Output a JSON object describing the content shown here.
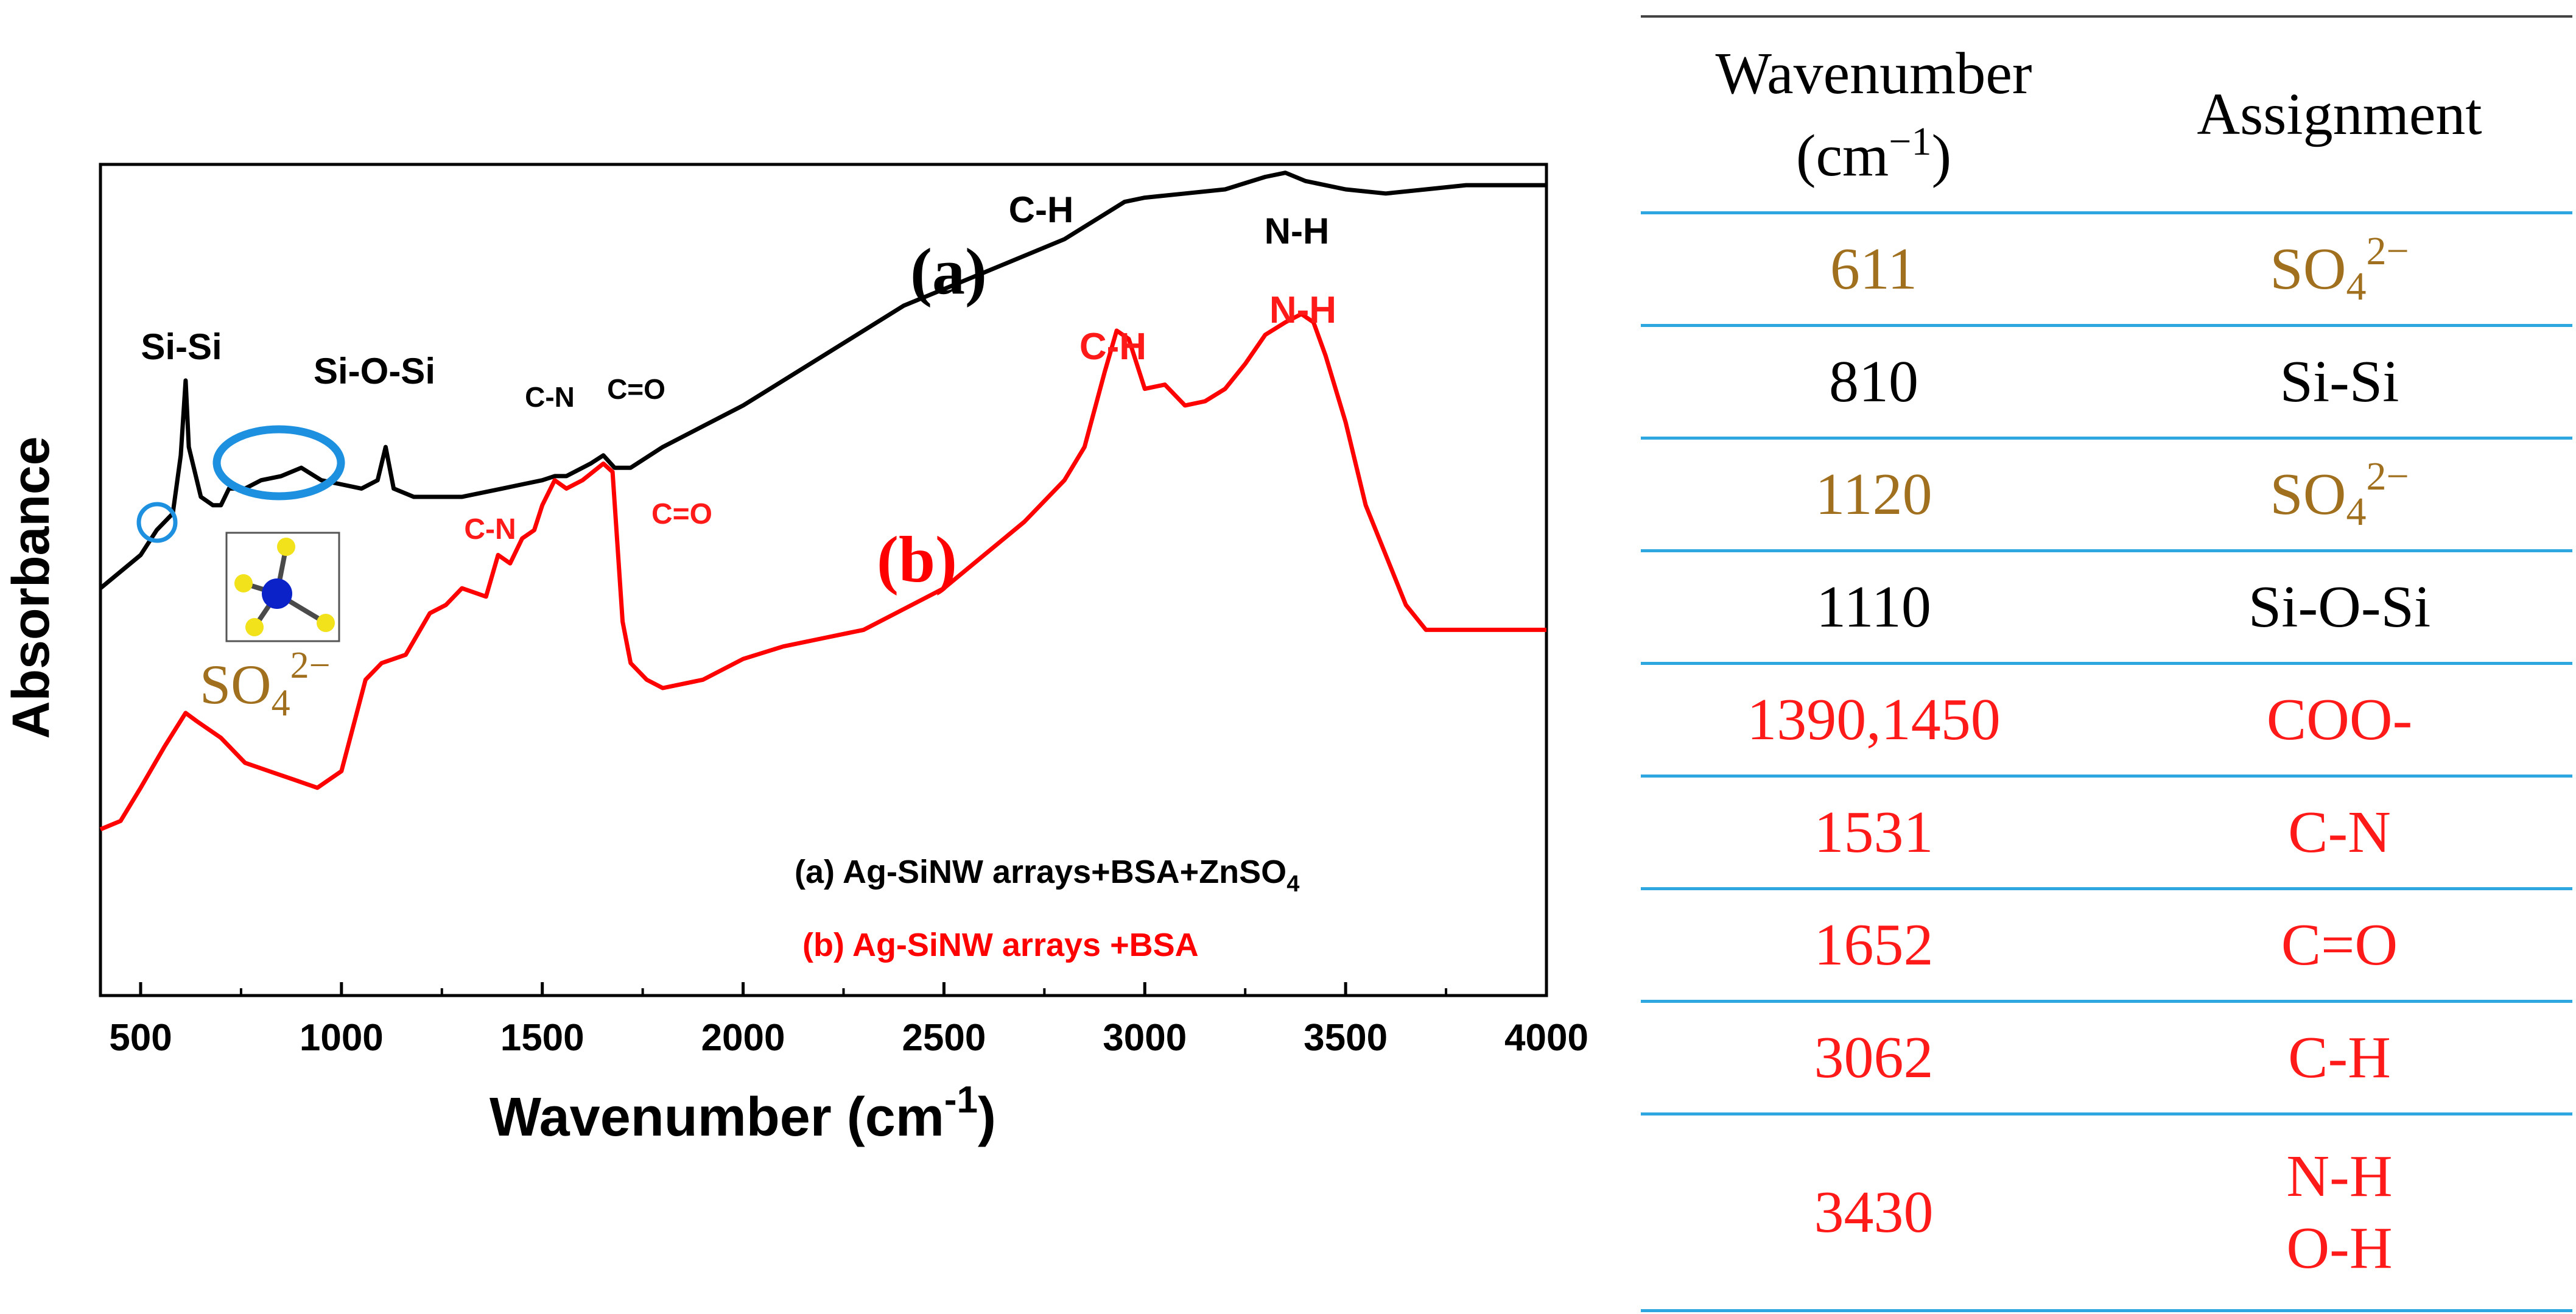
{
  "chart_data": {
    "type": "line",
    "xlabel": "Wavenumber (cm-1)",
    "xlabel_base": "Wavenumber (cm",
    "xlabel_exp": "-1",
    "xlabel_close": ")",
    "ylabel": "Absorbance",
    "xlim": [
      400,
      4000
    ],
    "ylim": [
      0,
      100
    ],
    "xticks": [
      500,
      1000,
      1500,
      2000,
      2500,
      3000,
      3500,
      4000
    ],
    "xtick_labels": [
      "500",
      "1000",
      "1500",
      "2000",
      "2500",
      "3000",
      "3500",
      "4000"
    ],
    "yticks_shown": false,
    "series": [
      {
        "name": "(a) Ag-SiNW arrays+BSA+ZnSO4",
        "legend_base": "(a) Ag-SiNW arrays+BSA+ZnSO",
        "legend_sub": "4",
        "tag": "(a)",
        "color": "#000000",
        "x": [
          400,
          500,
          540,
          580,
          600,
          612,
          620,
          650,
          680,
          700,
          720,
          760,
          800,
          850,
          900,
          950,
          1000,
          1050,
          1090,
          1110,
          1130,
          1180,
          1230,
          1300,
          1400,
          1450,
          1500,
          1531,
          1560,
          1620,
          1652,
          1680,
          1720,
          1800,
          2000,
          2200,
          2400,
          2600,
          2800,
          2900,
          2950,
          3000,
          3100,
          3200,
          3300,
          3350,
          3400,
          3500,
          3600,
          3700,
          3800,
          3900,
          4000
        ],
        "y": [
          49,
          53,
          56,
          58,
          65,
          74,
          66,
          60,
          59,
          59,
          61,
          61,
          62,
          62.5,
          63.5,
          62,
          61.5,
          61,
          62,
          66,
          61,
          60,
          60,
          60,
          61,
          61.5,
          62,
          62.5,
          62.5,
          64,
          65,
          63.5,
          63.5,
          66,
          71,
          77,
          83,
          87,
          91,
          94,
          95.5,
          96,
          96.5,
          97,
          98.5,
          99,
          98,
          97,
          96.5,
          97,
          97.5,
          97.5,
          97.5
        ]
      },
      {
        "name": "(b) Ag-SiNW arrays +BSA",
        "tag": "(b)",
        "color": "#ff0000",
        "x": [
          400,
          450,
          500,
          560,
          612,
          640,
          700,
          760,
          820,
          880,
          940,
          1000,
          1060,
          1100,
          1160,
          1220,
          1260,
          1300,
          1360,
          1390,
          1420,
          1450,
          1480,
          1500,
          1531,
          1560,
          1600,
          1652,
          1675,
          1700,
          1720,
          1760,
          1800,
          1900,
          2000,
          2100,
          2200,
          2300,
          2400,
          2500,
          2600,
          2700,
          2800,
          2850,
          2900,
          2930,
          2960,
          3000,
          3050,
          3100,
          3150,
          3200,
          3250,
          3300,
          3350,
          3390,
          3420,
          3450,
          3500,
          3550,
          3600,
          3650,
          3700,
          3800,
          3900,
          4000
        ],
        "y": [
          20,
          21,
          25,
          30,
          34,
          33,
          31,
          28,
          27,
          26,
          25,
          27,
          38,
          40,
          41,
          46,
          47,
          49,
          48,
          53,
          52,
          55,
          56,
          59,
          62,
          61,
          62,
          64,
          63,
          45,
          40,
          38,
          37,
          38,
          40.5,
          42,
          43,
          44,
          46.5,
          49,
          53,
          57,
          62,
          66,
          75,
          80,
          79,
          73,
          73.5,
          71,
          71.5,
          73,
          76,
          79.5,
          81,
          82,
          81,
          77,
          69,
          59,
          53,
          47,
          44,
          44,
          44,
          44
        ]
      }
    ],
    "annotations": [
      {
        "text": "Si-Si",
        "color": "#000000"
      },
      {
        "text": "Si-O-Si",
        "color": "#000000"
      },
      {
        "text": "C-N",
        "color": "#000000"
      },
      {
        "text": "C=O",
        "color": "#000000"
      },
      {
        "text": "C-H",
        "color": "#000000"
      },
      {
        "text": "N-H",
        "color": "#000000"
      },
      {
        "text": "C-N",
        "color": "#ff1a1a"
      },
      {
        "text": "C=O",
        "color": "#ff1a1a"
      },
      {
        "text": "C-H",
        "color": "#ff1a1a"
      },
      {
        "text": "N-H",
        "color": "#ff1a1a"
      }
    ],
    "sulfate_label": {
      "base": "SO",
      "sub": "4",
      "sup": "2−",
      "color": "#a0701e"
    }
  },
  "table": {
    "header_wavenumber_line1": "Wavenumber",
    "header_wavenumber_line2_base": "(cm",
    "header_wavenumber_line2_sup": "−1",
    "header_wavenumber_line2_close": ")",
    "header_assignment": "Assignment",
    "rows": [
      {
        "wavenumber": "611",
        "assignment_base": "SO",
        "assignment_sub": "4",
        "assignment_sup": "2−",
        "color": "brown"
      },
      {
        "wavenumber": "810",
        "assignment": "Si-Si",
        "color": "black"
      },
      {
        "wavenumber": "1120",
        "assignment_base": "SO",
        "assignment_sub": "4",
        "assignment_sup": "2−",
        "color": "brown"
      },
      {
        "wavenumber": "1110",
        "assignment": "Si-O-Si",
        "color": "black"
      },
      {
        "wavenumber": "1390,1450",
        "assignment": "COO-",
        "color": "red"
      },
      {
        "wavenumber": "1531",
        "assignment": "C-N",
        "color": "red"
      },
      {
        "wavenumber": "1652",
        "assignment": "C=O",
        "color": "red"
      },
      {
        "wavenumber": "3062",
        "assignment": "C-H",
        "color": "red"
      },
      {
        "wavenumber": "3430",
        "assignment_line1": "N-H",
        "assignment_line2": "O-H",
        "color": "red"
      }
    ]
  },
  "colors": {
    "accent_blue": "#1e90e0",
    "molecule_center": "#0a22c8",
    "molecule_atom": "#f2e21c"
  }
}
